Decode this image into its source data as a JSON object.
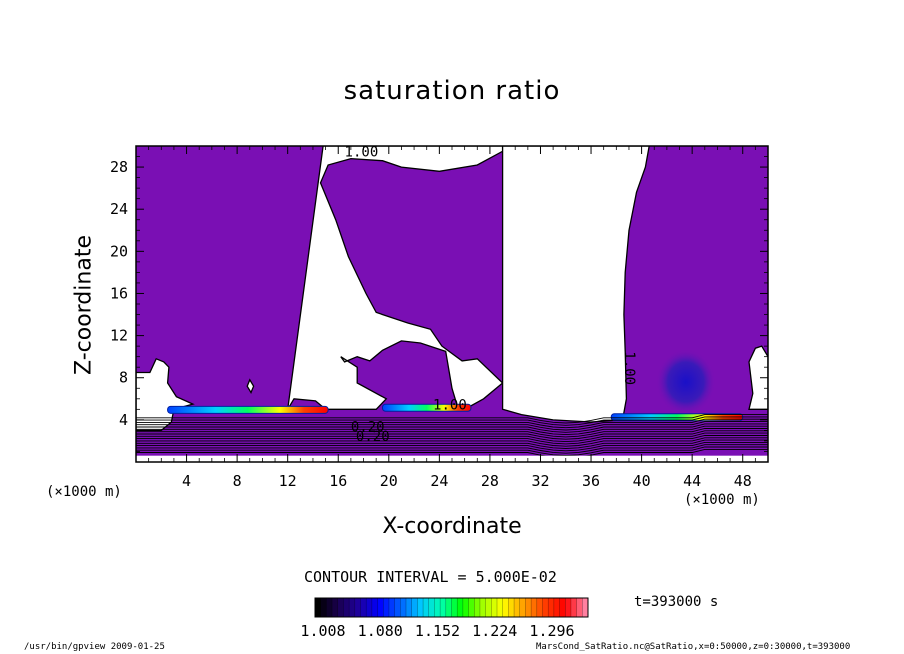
{
  "chart_data": {
    "type": "heatmap",
    "title": "saturation ratio",
    "xlabel": "X-coordinate",
    "ylabel": "Z-coordinate",
    "x_unit": "(×1000 m)",
    "y_unit": "(×1000 m)",
    "xlim": [
      0,
      50
    ],
    "ylim": [
      0,
      30
    ],
    "x_ticks": [
      4,
      8,
      12,
      16,
      20,
      24,
      28,
      32,
      36,
      40,
      44,
      48
    ],
    "y_ticks": [
      4,
      8,
      12,
      16,
      20,
      24,
      28
    ],
    "contour_labels": [
      {
        "text": "1.00",
        "x": 16.5,
        "z": 29.0
      },
      {
        "text": "1.00",
        "x": 38.7,
        "z": 10.5,
        "rotated": true
      },
      {
        "text": "1.00",
        "x": 23.5,
        "z": 5.0
      },
      {
        "text": "0.20",
        "x": 17.4,
        "z": 2.0
      },
      {
        "text": "0.20",
        "x": 17.0,
        "z": 2.9
      }
    ],
    "contour_interval_text": "CONTOUR INTERVAL = 5.000E-02",
    "time_text": "t=393000 s",
    "colorbar": {
      "min": 1.008,
      "max": 1.296,
      "tick_labels": [
        "1.008",
        "1.080",
        "1.152",
        "1.224",
        "1.296"
      ],
      "colors": [
        "#000000",
        "#1a0050",
        "#1e00a0",
        "#0000ff",
        "#0060ff",
        "#00c8ff",
        "#00ffb0",
        "#00ff00",
        "#a0ff00",
        "#ffff00",
        "#ffa000",
        "#ff4000",
        "#ff0000",
        "#ff80a0"
      ]
    },
    "fill_color_subsaturated": "#7a0fb4"
  },
  "footer": {
    "left": "/usr/bin/gpview  2009-01-25",
    "right": "MarsCond_SatRatio.nc@SatRatio,x=0:50000,z=0:30000,t=393000"
  }
}
